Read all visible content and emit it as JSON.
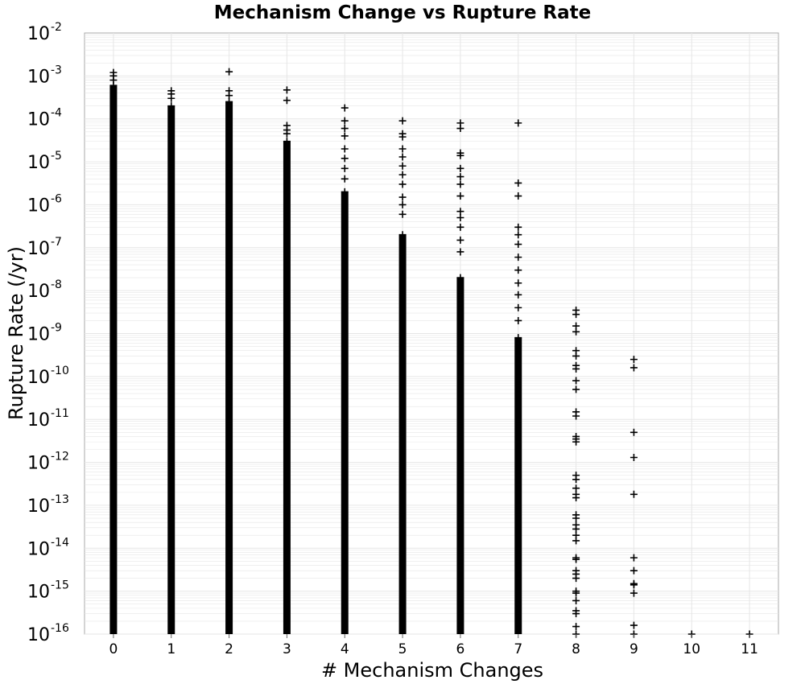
{
  "chart_data": {
    "type": "scatter",
    "title": "Mechanism Change vs Rupture Rate",
    "xlabel": "# Mechanism Changes",
    "ylabel": "Rupture Rate (/yr)",
    "x_ticks": [
      "0",
      "1",
      "2",
      "3",
      "4",
      "5",
      "6",
      "7",
      "8",
      "9",
      "10",
      "11"
    ],
    "xlim": [
      -0.5,
      11.5
    ],
    "y_scale": "log",
    "ylim": [
      1e-16,
      0.01
    ],
    "y_ticks": [
      {
        "base": "10",
        "exp": "-2"
      },
      {
        "base": "10",
        "exp": "-3"
      },
      {
        "base": "10",
        "exp": "-4"
      },
      {
        "base": "10",
        "exp": "-5"
      },
      {
        "base": "10",
        "exp": "-6"
      },
      {
        "base": "10",
        "exp": "-7"
      },
      {
        "base": "10",
        "exp": "-8"
      },
      {
        "base": "10",
        "exp": "-9"
      },
      {
        "base": "10",
        "exp": "-10"
      },
      {
        "base": "10",
        "exp": "-11"
      },
      {
        "base": "10",
        "exp": "-12"
      },
      {
        "base": "10",
        "exp": "-13"
      },
      {
        "base": "10",
        "exp": "-14"
      },
      {
        "base": "10",
        "exp": "-15"
      },
      {
        "base": "10",
        "exp": "-16"
      }
    ],
    "marker": "plus",
    "marker_color": "#000000",
    "grid": true,
    "grid_color": "#e6e6e6",
    "dense_columns": [
      {
        "x": 0,
        "y_min": 1e-16,
        "y_max": 0.0006
      },
      {
        "x": 1,
        "y_min": 1e-16,
        "y_max": 0.0002
      },
      {
        "x": 2,
        "y_min": 1e-16,
        "y_max": 0.00025
      },
      {
        "x": 3,
        "y_min": 1e-16,
        "y_max": 3e-05
      },
      {
        "x": 4,
        "y_min": 1e-16,
        "y_max": 2e-06
      },
      {
        "x": 5,
        "y_min": 1e-16,
        "y_max": 2e-07
      },
      {
        "x": 6,
        "y_min": 1e-16,
        "y_max": 2e-08
      },
      {
        "x": 7,
        "y_min": 1e-16,
        "y_max": 8e-10
      }
    ],
    "points": [
      {
        "x": 0,
        "y": 0.0012
      },
      {
        "x": 0,
        "y": 0.001
      },
      {
        "x": 0,
        "y": 0.0008
      },
      {
        "x": 1,
        "y": 0.00045
      },
      {
        "x": 1,
        "y": 0.00038
      },
      {
        "x": 1,
        "y": 0.0003
      },
      {
        "x": 2,
        "y": 0.00125
      },
      {
        "x": 2,
        "y": 0.00045
      },
      {
        "x": 2,
        "y": 0.00035
      },
      {
        "x": 3,
        "y": 0.00047
      },
      {
        "x": 3,
        "y": 0.00027
      },
      {
        "x": 3,
        "y": 7e-05
      },
      {
        "x": 3,
        "y": 5.5e-05
      },
      {
        "x": 3,
        "y": 4.5e-05
      },
      {
        "x": 4,
        "y": 0.00018
      },
      {
        "x": 4,
        "y": 9e-05
      },
      {
        "x": 4,
        "y": 6e-05
      },
      {
        "x": 4,
        "y": 4e-05
      },
      {
        "x": 4,
        "y": 2e-05
      },
      {
        "x": 4,
        "y": 1.2e-05
      },
      {
        "x": 4,
        "y": 7e-06
      },
      {
        "x": 4,
        "y": 4e-06
      },
      {
        "x": 5,
        "y": 9e-05
      },
      {
        "x": 5,
        "y": 4.5e-05
      },
      {
        "x": 5,
        "y": 3.8e-05
      },
      {
        "x": 5,
        "y": 2e-05
      },
      {
        "x": 5,
        "y": 1.3e-05
      },
      {
        "x": 5,
        "y": 8e-06
      },
      {
        "x": 5,
        "y": 5e-06
      },
      {
        "x": 5,
        "y": 3e-06
      },
      {
        "x": 5,
        "y": 1.5e-06
      },
      {
        "x": 5,
        "y": 1e-06
      },
      {
        "x": 5,
        "y": 6e-07
      },
      {
        "x": 6,
        "y": 8e-05
      },
      {
        "x": 6,
        "y": 6e-05
      },
      {
        "x": 6,
        "y": 1.6e-05
      },
      {
        "x": 6,
        "y": 1.4e-05
      },
      {
        "x": 6,
        "y": 7e-06
      },
      {
        "x": 6,
        "y": 4.5e-06
      },
      {
        "x": 6,
        "y": 3e-06
      },
      {
        "x": 6,
        "y": 1.6e-06
      },
      {
        "x": 6,
        "y": 7e-07
      },
      {
        "x": 6,
        "y": 5e-07
      },
      {
        "x": 6,
        "y": 3e-07
      },
      {
        "x": 6,
        "y": 1.5e-07
      },
      {
        "x": 6,
        "y": 8e-08
      },
      {
        "x": 7,
        "y": 8e-05
      },
      {
        "x": 7,
        "y": 3.2e-06
      },
      {
        "x": 7,
        "y": 1.6e-06
      },
      {
        "x": 7,
        "y": 3e-07
      },
      {
        "x": 7,
        "y": 2e-07
      },
      {
        "x": 7,
        "y": 1.2e-07
      },
      {
        "x": 7,
        "y": 6e-08
      },
      {
        "x": 7,
        "y": 3e-08
      },
      {
        "x": 7,
        "y": 1.5e-08
      },
      {
        "x": 7,
        "y": 8e-09
      },
      {
        "x": 7,
        "y": 4e-09
      },
      {
        "x": 7,
        "y": 2e-09
      },
      {
        "x": 8,
        "y": 3.5e-09
      },
      {
        "x": 8,
        "y": 2.8e-09
      },
      {
        "x": 8,
        "y": 1.5e-09
      },
      {
        "x": 8,
        "y": 1.1e-09
      },
      {
        "x": 8,
        "y": 4e-10
      },
      {
        "x": 8,
        "y": 3e-10
      },
      {
        "x": 8,
        "y": 1.8e-10
      },
      {
        "x": 8,
        "y": 1.5e-10
      },
      {
        "x": 8,
        "y": 8e-11
      },
      {
        "x": 8,
        "y": 5e-11
      },
      {
        "x": 8,
        "y": 1.5e-11
      },
      {
        "x": 8,
        "y": 1.2e-11
      },
      {
        "x": 8,
        "y": 4e-12
      },
      {
        "x": 8,
        "y": 3.5e-12
      },
      {
        "x": 8,
        "y": 3e-12
      },
      {
        "x": 8,
        "y": 5e-13
      },
      {
        "x": 8,
        "y": 4e-13
      },
      {
        "x": 8,
        "y": 2.5e-13
      },
      {
        "x": 8,
        "y": 1.8e-13
      },
      {
        "x": 8,
        "y": 1.5e-13
      },
      {
        "x": 8,
        "y": 6e-14
      },
      {
        "x": 8,
        "y": 5e-14
      },
      {
        "x": 8,
        "y": 3.5e-14
      },
      {
        "x": 8,
        "y": 2.8e-14
      },
      {
        "x": 8,
        "y": 2e-14
      },
      {
        "x": 8,
        "y": 1.5e-14
      },
      {
        "x": 8,
        "y": 6e-15
      },
      {
        "x": 8,
        "y": 5.5e-15
      },
      {
        "x": 8,
        "y": 3e-15
      },
      {
        "x": 8,
        "y": 2.5e-15
      },
      {
        "x": 8,
        "y": 2e-15
      },
      {
        "x": 8,
        "y": 1e-15
      },
      {
        "x": 8,
        "y": 9e-16
      },
      {
        "x": 8,
        "y": 6e-16
      },
      {
        "x": 8,
        "y": 3.5e-16
      },
      {
        "x": 8,
        "y": 3e-16
      },
      {
        "x": 8,
        "y": 1.5e-16
      },
      {
        "x": 8,
        "y": 1e-16
      },
      {
        "x": 9,
        "y": 2.5e-10
      },
      {
        "x": 9,
        "y": 1.6e-10
      },
      {
        "x": 9,
        "y": 5e-12
      },
      {
        "x": 9,
        "y": 1.3e-12
      },
      {
        "x": 9,
        "y": 1.8e-13
      },
      {
        "x": 9,
        "y": 6e-15
      },
      {
        "x": 9,
        "y": 3e-15
      },
      {
        "x": 9,
        "y": 1.5e-15
      },
      {
        "x": 9,
        "y": 1.4e-15
      },
      {
        "x": 9,
        "y": 9e-16
      },
      {
        "x": 9,
        "y": 1.6e-16
      },
      {
        "x": 9,
        "y": 1e-16
      },
      {
        "x": 10,
        "y": 1e-16
      },
      {
        "x": 11,
        "y": 1e-16
      }
    ]
  }
}
